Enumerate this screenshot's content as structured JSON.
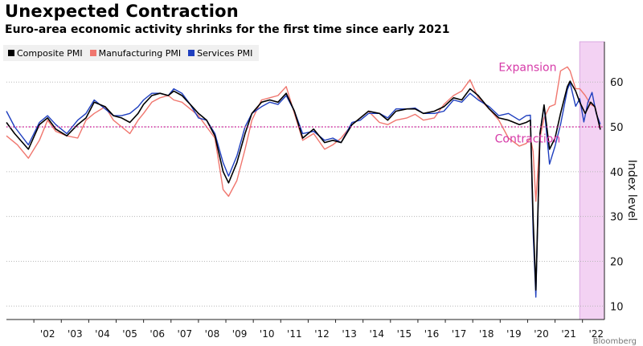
{
  "header": {
    "title": "Unexpected Contraction",
    "subtitle": "Euro-area economic activity shrinks for the first time since early 2021"
  },
  "footer": {
    "source_text": "Bloomberg"
  },
  "chart_data": {
    "type": "line",
    "title": "Unexpected Contraction",
    "subtitle": "Euro-area economic activity shrinks for the first time since early 2021",
    "xlabel": "",
    "ylabel": "Index level",
    "ylim": [
      7,
      69
    ],
    "xlim": [
      2001.0,
      2022.8
    ],
    "yticks": [
      10,
      20,
      30,
      40,
      50,
      60
    ],
    "xticks": [
      "'02",
      "'03",
      "'04",
      "'05",
      "'06",
      "'07",
      "'08",
      "'09",
      "'10",
      "'11",
      "'12",
      "'13",
      "'14",
      "'15",
      "'16",
      "'17",
      "'18",
      "'19",
      "'20",
      "'21",
      "'22"
    ],
    "grid": "horizontal dotted",
    "legend_position": "top-left",
    "threshold": {
      "value": 50,
      "color": "#d63aa8"
    },
    "annotations": [
      {
        "text": "Expansion",
        "x": 2020.0,
        "y": 62.5,
        "color": "#d63aa8"
      },
      {
        "text": "Contraction",
        "x": 2020.0,
        "y": 46.5,
        "color": "#d63aa8"
      }
    ],
    "shaded_region": {
      "x0": 2021.9,
      "x1": 2022.8,
      "color": "#f3d2f3"
    },
    "series": [
      {
        "name": "Composite PMI",
        "color": "#000000",
        "points": [
          [
            2001.0,
            51
          ],
          [
            2001.3,
            48.5
          ],
          [
            2001.8,
            45
          ],
          [
            2002.2,
            50.5
          ],
          [
            2002.5,
            52
          ],
          [
            2002.8,
            49.5
          ],
          [
            2003.2,
            48
          ],
          [
            2003.6,
            50.5
          ],
          [
            2003.9,
            52
          ],
          [
            2004.2,
            55.5
          ],
          [
            2004.6,
            54.5
          ],
          [
            2004.9,
            52.5
          ],
          [
            2005.2,
            52
          ],
          [
            2005.5,
            51
          ],
          [
            2005.8,
            53
          ],
          [
            2006.0,
            55
          ],
          [
            2006.3,
            57
          ],
          [
            2006.6,
            57.5
          ],
          [
            2006.9,
            57
          ],
          [
            2007.1,
            58
          ],
          [
            2007.4,
            57
          ],
          [
            2007.7,
            55
          ],
          [
            2008.0,
            53
          ],
          [
            2008.3,
            51.5
          ],
          [
            2008.6,
            48
          ],
          [
            2008.9,
            40
          ],
          [
            2009.1,
            37.5
          ],
          [
            2009.4,
            42
          ],
          [
            2009.7,
            48.5
          ],
          [
            2009.95,
            53
          ],
          [
            2010.3,
            55.5
          ],
          [
            2010.6,
            56
          ],
          [
            2010.9,
            55.5
          ],
          [
            2011.2,
            57.5
          ],
          [
            2011.5,
            53.5
          ],
          [
            2011.8,
            47.5
          ],
          [
            2012.2,
            49.5
          ],
          [
            2012.6,
            46.5
          ],
          [
            2012.9,
            47
          ],
          [
            2013.2,
            46.5
          ],
          [
            2013.6,
            50.5
          ],
          [
            2013.9,
            52
          ],
          [
            2014.2,
            53.5
          ],
          [
            2014.6,
            53
          ],
          [
            2014.9,
            51.5
          ],
          [
            2015.2,
            53.5
          ],
          [
            2015.6,
            54
          ],
          [
            2015.9,
            54
          ],
          [
            2016.2,
            53
          ],
          [
            2016.6,
            53.5
          ],
          [
            2016.95,
            54.5
          ],
          [
            2017.3,
            56.5
          ],
          [
            2017.6,
            56
          ],
          [
            2017.9,
            58.5
          ],
          [
            2018.2,
            57
          ],
          [
            2018.6,
            54
          ],
          [
            2018.95,
            52
          ],
          [
            2019.3,
            51.5
          ],
          [
            2019.7,
            50.5
          ],
          [
            2019.95,
            51
          ],
          [
            2020.1,
            51.5
          ],
          [
            2020.2,
            29.5
          ],
          [
            2020.3,
            13.6
          ],
          [
            2020.45,
            48.5
          ],
          [
            2020.6,
            54.9
          ],
          [
            2020.8,
            45
          ],
          [
            2021.0,
            47.5
          ],
          [
            2021.2,
            53
          ],
          [
            2021.45,
            59
          ],
          [
            2021.55,
            60.2
          ],
          [
            2021.75,
            58
          ],
          [
            2021.9,
            55.5
          ],
          [
            2022.1,
            53
          ],
          [
            2022.3,
            55.5
          ],
          [
            2022.45,
            54.5
          ],
          [
            2022.55,
            52
          ],
          [
            2022.65,
            49.4
          ]
        ]
      },
      {
        "name": "Manufacturing PMI",
        "color": "#f0766e",
        "points": [
          [
            2001.0,
            48
          ],
          [
            2001.4,
            46
          ],
          [
            2001.8,
            43
          ],
          [
            2002.2,
            47
          ],
          [
            2002.5,
            51.5
          ],
          [
            2002.8,
            49
          ],
          [
            2003.2,
            48
          ],
          [
            2003.6,
            47.5
          ],
          [
            2003.9,
            51.5
          ],
          [
            2004.2,
            53
          ],
          [
            2004.6,
            54.5
          ],
          [
            2004.9,
            51.5
          ],
          [
            2005.2,
            50
          ],
          [
            2005.5,
            48.5
          ],
          [
            2005.8,
            51.5
          ],
          [
            2006.0,
            53
          ],
          [
            2006.3,
            55.5
          ],
          [
            2006.6,
            56.5
          ],
          [
            2006.9,
            57
          ],
          [
            2007.1,
            56
          ],
          [
            2007.4,
            55.5
          ],
          [
            2007.7,
            54
          ],
          [
            2008.0,
            52.5
          ],
          [
            2008.3,
            50
          ],
          [
            2008.6,
            47.5
          ],
          [
            2008.9,
            36
          ],
          [
            2009.1,
            34.5
          ],
          [
            2009.4,
            38
          ],
          [
            2009.7,
            45
          ],
          [
            2009.95,
            51.5
          ],
          [
            2010.3,
            56
          ],
          [
            2010.6,
            56.5
          ],
          [
            2010.9,
            57
          ],
          [
            2011.2,
            59
          ],
          [
            2011.5,
            53
          ],
          [
            2011.8,
            47
          ],
          [
            2012.2,
            48.5
          ],
          [
            2012.6,
            45
          ],
          [
            2012.9,
            46
          ],
          [
            2013.2,
            47.5
          ],
          [
            2013.6,
            50.5
          ],
          [
            2013.9,
            52
          ],
          [
            2014.2,
            53.5
          ],
          [
            2014.6,
            51
          ],
          [
            2014.9,
            50.5
          ],
          [
            2015.2,
            51.5
          ],
          [
            2015.6,
            52
          ],
          [
            2015.9,
            52.8
          ],
          [
            2016.2,
            51.5
          ],
          [
            2016.6,
            52
          ],
          [
            2016.95,
            55
          ],
          [
            2017.3,
            57
          ],
          [
            2017.6,
            58
          ],
          [
            2017.9,
            60.5
          ],
          [
            2018.2,
            56.5
          ],
          [
            2018.6,
            54
          ],
          [
            2018.95,
            51.5
          ],
          [
            2019.3,
            47.5
          ],
          [
            2019.7,
            45.7
          ],
          [
            2019.95,
            46.3
          ],
          [
            2020.1,
            47.5
          ],
          [
            2020.2,
            44.5
          ],
          [
            2020.3,
            33.4
          ],
          [
            2020.45,
            47.5
          ],
          [
            2020.6,
            52
          ],
          [
            2020.8,
            54.5
          ],
          [
            2021.0,
            55
          ],
          [
            2021.2,
            62.5
          ],
          [
            2021.45,
            63.4
          ],
          [
            2021.55,
            62.5
          ],
          [
            2021.75,
            58.5
          ],
          [
            2021.9,
            58.5
          ],
          [
            2022.1,
            57
          ],
          [
            2022.3,
            55
          ],
          [
            2022.45,
            54.5
          ],
          [
            2022.55,
            52
          ],
          [
            2022.65,
            49.8
          ]
        ]
      },
      {
        "name": "Services PMI",
        "color": "#1f3fbf",
        "points": [
          [
            2001.0,
            53.5
          ],
          [
            2001.3,
            50
          ],
          [
            2001.8,
            46
          ],
          [
            2002.2,
            51
          ],
          [
            2002.5,
            52.5
          ],
          [
            2002.8,
            50.5
          ],
          [
            2003.2,
            48.5
          ],
          [
            2003.6,
            51.5
          ],
          [
            2003.9,
            53
          ],
          [
            2004.2,
            56
          ],
          [
            2004.6,
            54
          ],
          [
            2004.9,
            52.5
          ],
          [
            2005.2,
            52.5
          ],
          [
            2005.5,
            53
          ],
          [
            2005.8,
            54.5
          ],
          [
            2006.0,
            56
          ],
          [
            2006.3,
            57.5
          ],
          [
            2006.6,
            57.5
          ],
          [
            2006.9,
            57
          ],
          [
            2007.1,
            58.5
          ],
          [
            2007.4,
            57.5
          ],
          [
            2007.7,
            55
          ],
          [
            2008.0,
            52
          ],
          [
            2008.3,
            51.5
          ],
          [
            2008.6,
            48.5
          ],
          [
            2008.9,
            42
          ],
          [
            2009.1,
            39
          ],
          [
            2009.4,
            43.5
          ],
          [
            2009.7,
            50
          ],
          [
            2009.95,
            53
          ],
          [
            2010.3,
            54.5
          ],
          [
            2010.6,
            55.5
          ],
          [
            2010.9,
            55
          ],
          [
            2011.2,
            57
          ],
          [
            2011.5,
            53.5
          ],
          [
            2011.8,
            48.5
          ],
          [
            2012.2,
            49
          ],
          [
            2012.6,
            47
          ],
          [
            2012.9,
            47.5
          ],
          [
            2013.2,
            46.5
          ],
          [
            2013.6,
            51
          ],
          [
            2013.9,
            51.5
          ],
          [
            2014.2,
            53
          ],
          [
            2014.6,
            53
          ],
          [
            2014.9,
            52
          ],
          [
            2015.2,
            54
          ],
          [
            2015.6,
            54
          ],
          [
            2015.9,
            54.2
          ],
          [
            2016.2,
            53
          ],
          [
            2016.6,
            53
          ],
          [
            2016.95,
            53.5
          ],
          [
            2017.3,
            56
          ],
          [
            2017.6,
            55.5
          ],
          [
            2017.9,
            57.5
          ],
          [
            2018.2,
            56
          ],
          [
            2018.6,
            54.5
          ],
          [
            2018.95,
            52.5
          ],
          [
            2019.3,
            53
          ],
          [
            2019.7,
            51.5
          ],
          [
            2019.95,
            52.5
          ],
          [
            2020.1,
            52.6
          ],
          [
            2020.2,
            26.4
          ],
          [
            2020.3,
            12.0
          ],
          [
            2020.45,
            48.3
          ],
          [
            2020.6,
            54.7
          ],
          [
            2020.8,
            41.7
          ],
          [
            2021.0,
            45.7
          ],
          [
            2021.2,
            50.5
          ],
          [
            2021.45,
            58.3
          ],
          [
            2021.55,
            59.8
          ],
          [
            2021.75,
            54.6
          ],
          [
            2021.9,
            56.3
          ],
          [
            2022.05,
            51.1
          ],
          [
            2022.2,
            55.5
          ],
          [
            2022.35,
            57.7
          ],
          [
            2022.5,
            53.0
          ],
          [
            2022.65,
            50.6
          ]
        ]
      }
    ]
  }
}
